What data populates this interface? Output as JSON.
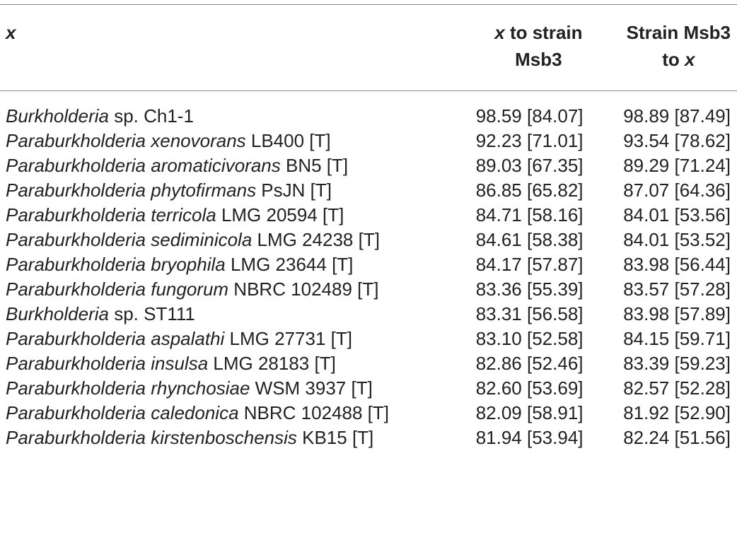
{
  "table": {
    "headers": {
      "x": "x",
      "a_line1_italic": "x",
      "a_line1_rest": " to strain",
      "a_line2": "Msb3",
      "b_line1": "Strain Msb3",
      "b_line2_pre": "to ",
      "b_line2_italic": "x"
    },
    "rows": [
      {
        "genus_species": "Burkholderia",
        "rest": " sp. Ch1-1",
        "a": "98.59 [84.07]",
        "b": "98.89 [87.49]"
      },
      {
        "genus_species": "Paraburkholderia xenovorans",
        "rest": " LB400 [T]",
        "a": "92.23 [71.01]",
        "b": "93.54 [78.62]"
      },
      {
        "genus_species": "Paraburkholderia aromaticivorans",
        "rest": " BN5 [T]",
        "a": "89.03 [67.35]",
        "b": "89.29 [71.24]"
      },
      {
        "genus_species": "Paraburkholderia phytofirmans",
        "rest": " PsJN [T]",
        "a": "86.85 [65.82]",
        "b": "87.07 [64.36]"
      },
      {
        "genus_species": "Paraburkholderia terricola",
        "rest": " LMG 20594 [T]",
        "a": "84.71 [58.16]",
        "b": "84.01 [53.56]"
      },
      {
        "genus_species": "Paraburkholderia sediminicola",
        "rest": " LMG 24238 [T]",
        "a": "84.61 [58.38]",
        "b": "84.01 [53.52]"
      },
      {
        "genus_species": "Paraburkholderia bryophila",
        "rest": " LMG 23644 [T]",
        "a": "84.17 [57.87]",
        "b": "83.98 [56.44]"
      },
      {
        "genus_species": "Paraburkholderia fungorum",
        "rest": " NBRC 102489 [T]",
        "a": "83.36 [55.39]",
        "b": "83.57 [57.28]"
      },
      {
        "genus_species": "Burkholderia",
        "rest": " sp. ST111",
        "a": "83.31 [56.58]",
        "b": "83.98 [57.89]"
      },
      {
        "genus_species": "Paraburkholderia aspalathi",
        "rest": " LMG 27731 [T]",
        "a": "83.10 [52.58]",
        "b": "84.15 [59.71]"
      },
      {
        "genus_species": "Paraburkholderia insulsa",
        "rest": " LMG 28183 [T]",
        "a": "82.86 [52.46]",
        "b": "83.39 [59.23]"
      },
      {
        "genus_species": "Paraburkholderia rhynchosiae",
        "rest": " WSM 3937 [T]",
        "a": "82.60 [53.69]",
        "b": "82.57 [52.28]"
      },
      {
        "genus_species": "Paraburkholderia caledonica",
        "rest": " NBRC 102488 [T]",
        "a": "82.09 [58.91]",
        "b": "81.92 [52.90]"
      },
      {
        "genus_species": "Paraburkholderia kirstenboschensis",
        "rest": " KB15 [T]",
        "a": "81.94 [53.94]",
        "b": "82.24 [51.56]"
      }
    ]
  }
}
